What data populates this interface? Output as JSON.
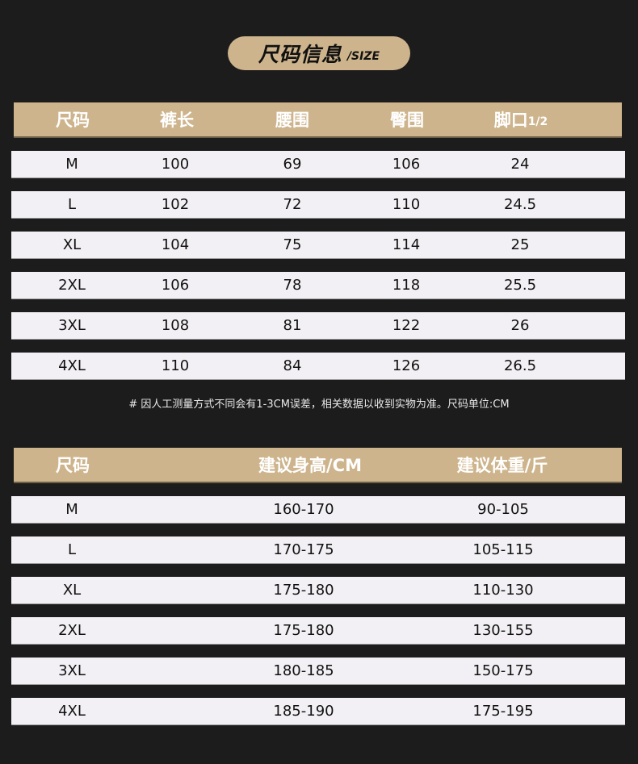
{
  "title": {
    "main": "尺码信息",
    "sub": "/SIZE"
  },
  "size_table": {
    "headers": [
      "尺码",
      "裤长",
      "腰围",
      "臀围",
      "脚口"
    ],
    "header_suffix": "1/2",
    "rows": [
      [
        "M",
        "100",
        "69",
        "106",
        "24"
      ],
      [
        "L",
        "102",
        "72",
        "110",
        "24.5"
      ],
      [
        "XL",
        "104",
        "75",
        "114",
        "25"
      ],
      [
        "2XL",
        "106",
        "78",
        "118",
        "25.5"
      ],
      [
        "3XL",
        "108",
        "81",
        "122",
        "26"
      ],
      [
        "4XL",
        "110",
        "84",
        "126",
        "26.5"
      ]
    ]
  },
  "note": "# 因人工测量方式不同会有1-3CM误差，相关数据以收到实物为准。尺码单位:CM",
  "recommend_table": {
    "headers": [
      "尺码",
      "建议身高/CM",
      "建议体重/斤"
    ],
    "rows": [
      [
        "M",
        "160-170",
        "90-105"
      ],
      [
        "L",
        "170-175",
        "105-115"
      ],
      [
        "XL",
        "175-180",
        "110-130"
      ],
      [
        "2XL",
        "175-180",
        "130-155"
      ],
      [
        "3XL",
        "180-185",
        "150-175"
      ],
      [
        "4XL",
        "185-190",
        "175-195"
      ]
    ]
  },
  "colors": {
    "background": "#1c1c1c",
    "header": "#cdb48c",
    "row": "#f2f0f4"
  }
}
